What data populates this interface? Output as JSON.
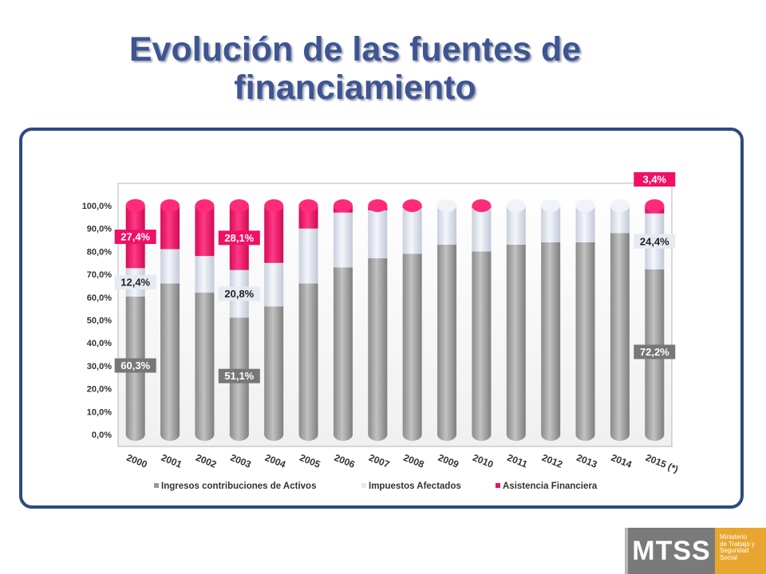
{
  "title_line1": "Evolución de las fuentes de",
  "title_line2": "financiamiento",
  "logo": {
    "acronym": "MTSS",
    "line1": "Ministerio",
    "line2": "de Trabajo y",
    "line3": "Seguridad",
    "line4": "Social"
  },
  "colors": {
    "title": "#3e5592",
    "border": "#2e4a80",
    "series1": "#a3a3a3",
    "series2": "#e0e5f0",
    "series3": "#ee1166",
    "logo_gray": "#7a7a7a",
    "logo_orange": "#e8a630"
  },
  "chart_data": {
    "type": "bar",
    "stacked": true,
    "categories": [
      "2000",
      "2001",
      "2002",
      "2003",
      "2004",
      "2005",
      "2006",
      "2007",
      "2008",
      "2009",
      "2010",
      "2011",
      "2012",
      "2013",
      "2014",
      "2015 (*)"
    ],
    "series": [
      {
        "name": "Ingresos contribuciones de Activos",
        "values": [
          60.3,
          66,
          62,
          51.1,
          56,
          66,
          73,
          77,
          79,
          83,
          80,
          83,
          84,
          84,
          88,
          72.2
        ]
      },
      {
        "name": "Impuestos Afectados",
        "values": [
          12.4,
          15,
          16,
          20.8,
          19,
          24,
          24,
          21,
          20,
          17,
          19,
          17,
          16,
          16,
          12,
          24.4
        ]
      },
      {
        "name": "Asistencia Financiera",
        "values": [
          27.4,
          19,
          22,
          28.1,
          25,
          10,
          3,
          2,
          1,
          0,
          1,
          0,
          0,
          0,
          0,
          3.4
        ]
      }
    ],
    "data_labels": [
      {
        "category": "2000",
        "series": "Ingresos contribuciones de Activos",
        "text": "60,3%"
      },
      {
        "category": "2000",
        "series": "Impuestos Afectados",
        "text": "12,4%"
      },
      {
        "category": "2000",
        "series": "Asistencia Financiera",
        "text": "27,4%"
      },
      {
        "category": "2003",
        "series": "Ingresos contribuciones de Activos",
        "text": "51,1%"
      },
      {
        "category": "2003",
        "series": "Impuestos Afectados",
        "text": "20,8%"
      },
      {
        "category": "2003",
        "series": "Asistencia Financiera",
        "text": "28,1%"
      },
      {
        "category": "2015 (*)",
        "series": "Ingresos contribuciones de Activos",
        "text": "72,2%"
      },
      {
        "category": "2015 (*)",
        "series": "Impuestos Afectados",
        "text": "24,4%"
      },
      {
        "category": "2015 (*)",
        "series": "Asistencia Financiera",
        "text": "3,4%"
      }
    ],
    "yticks": [
      "0,0%",
      "10,0%",
      "20,0%",
      "30,0%",
      "40,0%",
      "50,0%",
      "60,0%",
      "70,0%",
      "80,0%",
      "90,0%",
      "100,0%"
    ],
    "ylim": [
      0,
      100
    ],
    "legend_position": "bottom",
    "grid": false
  }
}
